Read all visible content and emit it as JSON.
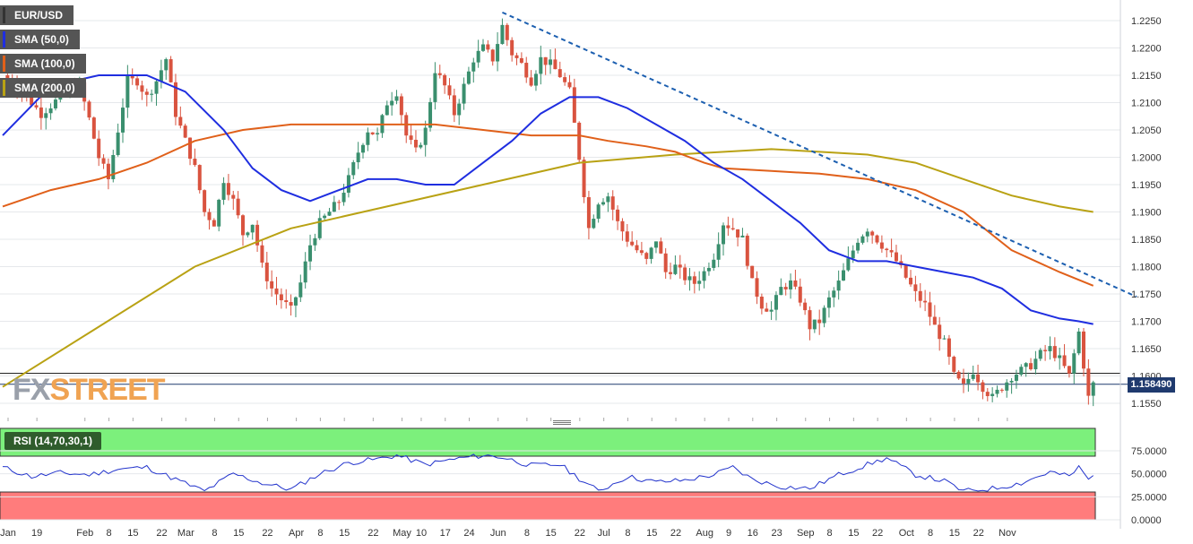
{
  "legend": {
    "symbol": "EUR/USD",
    "sma50": "SMA (50,0)",
    "sma100": "SMA (100,0)",
    "sma200": "SMA (200,0)",
    "rsi": "RSI (14,70,30,1)"
  },
  "colors": {
    "sma50": "#1f2ee0",
    "sma100": "#e0601a",
    "sma200": "#b9a214",
    "bull": "#3a8f6e",
    "bear": "#d9533f",
    "trendline": "#1c5fb0",
    "rsi_line": "#2233cc",
    "rsi_overbought": "#7cf07c",
    "rsi_oversold": "#ff7c7c"
  },
  "logo": {
    "part1": "FX",
    "part2": "STREET"
  },
  "current_price_label": "1.158490",
  "chart_data": [
    {
      "type": "candlestick",
      "title": "EUR/USD",
      "timeframe": "daily",
      "ylim": [
        1.1525,
        1.2275
      ],
      "y_ticks": [
        "1.2250",
        "1.2200",
        "1.2150",
        "1.2100",
        "1.2050",
        "1.2000",
        "1.1950",
        "1.1900",
        "1.1850",
        "1.1800",
        "1.1750",
        "1.1700",
        "1.1650",
        "1.1600",
        "1.1550"
      ],
      "x_ticks": [
        "Jan",
        "19",
        "Feb",
        "8",
        "15",
        "22",
        "Mar",
        "8",
        "15",
        "22",
        "Apr",
        "8",
        "15",
        "22",
        "May",
        "10",
        "17",
        "24",
        "Jun",
        "8",
        "15",
        "22",
        "Jul",
        "8",
        "15",
        "22",
        "Aug",
        "9",
        "16",
        "23",
        "Sep",
        "8",
        "15",
        "22",
        "Oct",
        "8",
        "15",
        "22",
        "Nov"
      ],
      "horizontal_level": 1.1605,
      "current_price": 1.15849,
      "close_path": [
        [
          0,
          1.215
        ],
        [
          4,
          1.212
        ],
        [
          8,
          1.208
        ],
        [
          12,
          1.211
        ],
        [
          16,
          1.213
        ],
        [
          18,
          1.207
        ],
        [
          20,
          1.2
        ],
        [
          22,
          1.196
        ],
        [
          24,
          1.205
        ],
        [
          26,
          1.214
        ],
        [
          28,
          1.214
        ],
        [
          30,
          1.211
        ],
        [
          32,
          1.214
        ],
        [
          34,
          1.218
        ],
        [
          36,
          1.208
        ],
        [
          38,
          1.203
        ],
        [
          40,
          1.198
        ],
        [
          42,
          1.19
        ],
        [
          44,
          1.188
        ],
        [
          46,
          1.196
        ],
        [
          48,
          1.192
        ],
        [
          50,
          1.186
        ],
        [
          52,
          1.188
        ],
        [
          54,
          1.18
        ],
        [
          56,
          1.176
        ],
        [
          58,
          1.174
        ],
        [
          60,
          1.172
        ],
        [
          62,
          1.177
        ],
        [
          64,
          1.184
        ],
        [
          66,
          1.188
        ],
        [
          68,
          1.19
        ],
        [
          70,
          1.192
        ],
        [
          72,
          1.196
        ],
        [
          74,
          1.201
        ],
        [
          76,
          1.205
        ],
        [
          78,
          1.204
        ],
        [
          80,
          1.21
        ],
        [
          82,
          1.212
        ],
        [
          84,
          1.204
        ],
        [
          86,
          1.201
        ],
        [
          88,
          1.205
        ],
        [
          90,
          1.216
        ],
        [
          92,
          1.213
        ],
        [
          94,
          1.208
        ],
        [
          96,
          1.213
        ],
        [
          98,
          1.218
        ],
        [
          100,
          1.22
        ],
        [
          102,
          1.218
        ],
        [
          104,
          1.224
        ],
        [
          106,
          1.219
        ],
        [
          108,
          1.217
        ],
        [
          110,
          1.214
        ],
        [
          112,
          1.218
        ],
        [
          114,
          1.217
        ],
        [
          116,
          1.215
        ],
        [
          118,
          1.212
        ],
        [
          120,
          1.2
        ],
        [
          122,
          1.187
        ],
        [
          124,
          1.192
        ],
        [
          126,
          1.193
        ],
        [
          128,
          1.188
        ],
        [
          130,
          1.185
        ],
        [
          132,
          1.183
        ],
        [
          134,
          1.181
        ],
        [
          136,
          1.185
        ],
        [
          138,
          1.179
        ],
        [
          140,
          1.18
        ],
        [
          142,
          1.178
        ],
        [
          144,
          1.177
        ],
        [
          146,
          1.179
        ],
        [
          148,
          1.182
        ],
        [
          150,
          1.188
        ],
        [
          152,
          1.187
        ],
        [
          154,
          1.185
        ],
        [
          156,
          1.177
        ],
        [
          158,
          1.173
        ],
        [
          160,
          1.172
        ],
        [
          162,
          1.176
        ],
        [
          164,
          1.177
        ],
        [
          166,
          1.174
        ],
        [
          168,
          1.169
        ],
        [
          170,
          1.17
        ],
        [
          172,
          1.174
        ],
        [
          174,
          1.177
        ],
        [
          176,
          1.181
        ],
        [
          178,
          1.185
        ],
        [
          180,
          1.187
        ],
        [
          182,
          1.185
        ],
        [
          184,
          1.183
        ],
        [
          186,
          1.181
        ],
        [
          188,
          1.178
        ],
        [
          190,
          1.175
        ],
        [
          192,
          1.173
        ],
        [
          194,
          1.169
        ],
        [
          196,
          1.166
        ],
        [
          198,
          1.16
        ],
        [
          200,
          1.158
        ],
        [
          202,
          1.161
        ],
        [
          204,
          1.158
        ],
        [
          206,
          1.156
        ],
        [
          208,
          1.158
        ],
        [
          210,
          1.16
        ],
        [
          212,
          1.161
        ],
        [
          214,
          1.162
        ],
        [
          216,
          1.164
        ],
        [
          218,
          1.165
        ],
        [
          220,
          1.163
        ],
        [
          222,
          1.16
        ],
        [
          224,
          1.168
        ],
        [
          226,
          1.156
        ],
        [
          227,
          1.15849
        ]
      ],
      "sma50": [
        [
          0,
          1.204
        ],
        [
          10,
          1.213
        ],
        [
          20,
          1.215
        ],
        [
          30,
          1.215
        ],
        [
          38,
          1.212
        ],
        [
          46,
          1.205
        ],
        [
          52,
          1.198
        ],
        [
          58,
          1.194
        ],
        [
          64,
          1.192
        ],
        [
          70,
          1.194
        ],
        [
          76,
          1.196
        ],
        [
          82,
          1.196
        ],
        [
          88,
          1.195
        ],
        [
          94,
          1.195
        ],
        [
          100,
          1.199
        ],
        [
          106,
          1.203
        ],
        [
          112,
          1.208
        ],
        [
          118,
          1.211
        ],
        [
          124,
          1.211
        ],
        [
          130,
          1.209
        ],
        [
          136,
          1.206
        ],
        [
          142,
          1.203
        ],
        [
          148,
          1.199
        ],
        [
          154,
          1.196
        ],
        [
          160,
          1.192
        ],
        [
          166,
          1.188
        ],
        [
          172,
          1.183
        ],
        [
          178,
          1.181
        ],
        [
          184,
          1.181
        ],
        [
          190,
          1.18
        ],
        [
          196,
          1.179
        ],
        [
          202,
          1.178
        ],
        [
          208,
          1.176
        ],
        [
          214,
          1.172
        ],
        [
          220,
          1.1705
        ],
        [
          224,
          1.17
        ],
        [
          227,
          1.1695
        ]
      ],
      "sma100": [
        [
          0,
          1.191
        ],
        [
          10,
          1.194
        ],
        [
          20,
          1.196
        ],
        [
          30,
          1.199
        ],
        [
          40,
          1.203
        ],
        [
          50,
          1.205
        ],
        [
          60,
          1.206
        ],
        [
          70,
          1.206
        ],
        [
          80,
          1.206
        ],
        [
          90,
          1.206
        ],
        [
          100,
          1.205
        ],
        [
          110,
          1.204
        ],
        [
          120,
          1.204
        ],
        [
          126,
          1.203
        ],
        [
          134,
          1.202
        ],
        [
          140,
          1.201
        ],
        [
          146,
          1.199
        ],
        [
          150,
          1.198
        ],
        [
          160,
          1.1975
        ],
        [
          170,
          1.197
        ],
        [
          180,
          1.196
        ],
        [
          190,
          1.194
        ],
        [
          200,
          1.19
        ],
        [
          210,
          1.183
        ],
        [
          220,
          1.179
        ],
        [
          227,
          1.1765
        ]
      ],
      "sma200": [
        [
          0,
          1.158
        ],
        [
          20,
          1.169
        ],
        [
          40,
          1.18
        ],
        [
          60,
          1.187
        ],
        [
          80,
          1.191
        ],
        [
          100,
          1.195
        ],
        [
          120,
          1.199
        ],
        [
          140,
          1.2005
        ],
        [
          160,
          1.2015
        ],
        [
          170,
          1.201
        ],
        [
          180,
          1.2005
        ],
        [
          190,
          1.199
        ],
        [
          200,
          1.196
        ],
        [
          210,
          1.193
        ],
        [
          220,
          1.191
        ],
        [
          227,
          1.19
        ]
      ],
      "trendline": {
        "from": [
          104,
          1.2265
        ],
        "to": [
          236,
          1.1745
        ]
      }
    },
    {
      "type": "line",
      "title": "RSI (14,70,30,1)",
      "ylim": [
        0,
        100
      ],
      "y_ticks": [
        "75.0000",
        "50.0000",
        "25.0000",
        "0.0000"
      ],
      "overbought": 70,
      "oversold": 30,
      "values": [
        [
          0,
          57
        ],
        [
          6,
          47
        ],
        [
          12,
          51
        ],
        [
          18,
          49
        ],
        [
          24,
          55
        ],
        [
          30,
          57
        ],
        [
          36,
          44
        ],
        [
          42,
          31
        ],
        [
          48,
          50
        ],
        [
          54,
          40
        ],
        [
          60,
          33
        ],
        [
          66,
          50
        ],
        [
          72,
          62
        ],
        [
          78,
          66
        ],
        [
          82,
          70
        ],
        [
          88,
          60
        ],
        [
          94,
          66
        ],
        [
          100,
          70
        ],
        [
          104,
          68
        ],
        [
          110,
          59
        ],
        [
          116,
          60
        ],
        [
          120,
          45
        ],
        [
          124,
          31
        ],
        [
          130,
          47
        ],
        [
          136,
          41
        ],
        [
          142,
          43
        ],
        [
          148,
          49
        ],
        [
          152,
          57
        ],
        [
          156,
          44
        ],
        [
          162,
          36
        ],
        [
          168,
          34
        ],
        [
          174,
          49
        ],
        [
          180,
          60
        ],
        [
          184,
          67
        ],
        [
          190,
          49
        ],
        [
          196,
          42
        ],
        [
          200,
          31
        ],
        [
          206,
          34
        ],
        [
          212,
          40
        ],
        [
          218,
          52
        ],
        [
          222,
          47
        ],
        [
          224,
          57
        ],
        [
          226,
          44
        ],
        [
          227,
          47
        ]
      ]
    }
  ]
}
